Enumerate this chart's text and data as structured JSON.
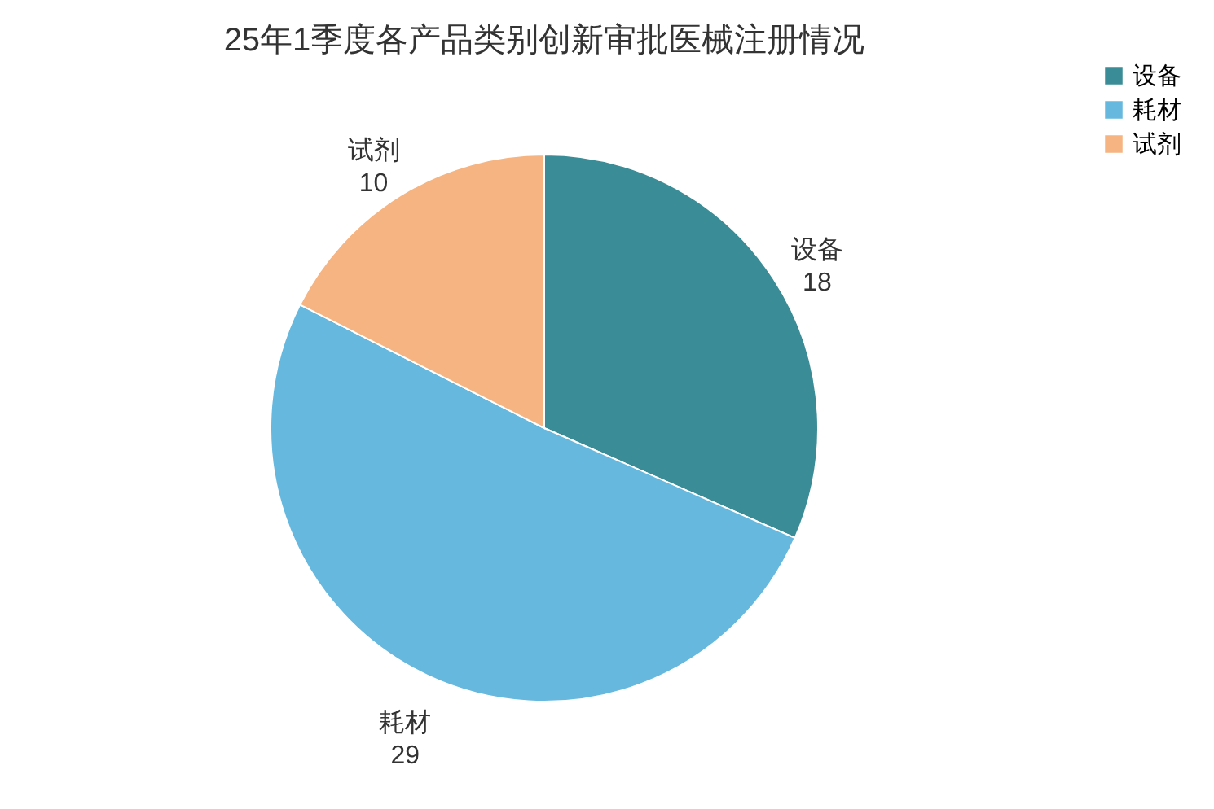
{
  "chart_data": {
    "type": "pie",
    "title": "25年1季度各产品类别创新审批医械注册情况",
    "categories": [
      "设备",
      "耗材",
      "试剂"
    ],
    "values": [
      18,
      29,
      10
    ],
    "colors": [
      "#3a8c96",
      "#66b8de",
      "#f5b482"
    ],
    "data_labels": true,
    "legend": "right"
  }
}
